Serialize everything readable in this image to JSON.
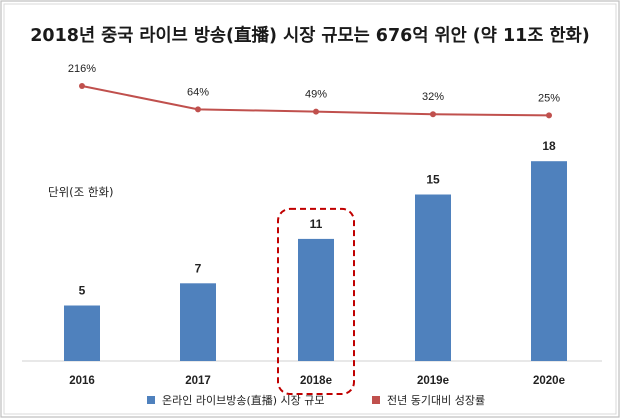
{
  "chart_data": {
    "type": "bar",
    "title": "2018년 중국 라이브 방송(直播) 시장 규모는 676억 위안 (약 11조 한화)",
    "unit_label": "단위(조 한화)",
    "categories": [
      "2016",
      "2017",
      "2018e",
      "2019e",
      "2020e"
    ],
    "highlighted_category": "2018e",
    "series": [
      {
        "name": "온라인 라이브방송(直播) 시장 규모",
        "type": "bar",
        "values": [
          5,
          7,
          11,
          15,
          18
        ],
        "labels": [
          "5",
          "7",
          "11",
          "15",
          "18"
        ],
        "color": "#4f81bd"
      },
      {
        "name": "전년 동기대비 성장률",
        "type": "line",
        "values": [
          216,
          64,
          49,
          32,
          25
        ],
        "labels": [
          "216%",
          "64%",
          "49%",
          "32%",
          "25%"
        ],
        "color": "#c0504d"
      }
    ],
    "grid": false,
    "legend_position": "bottom",
    "highlight_color": "#c00000",
    "frame_color": "#bfbfbf"
  }
}
